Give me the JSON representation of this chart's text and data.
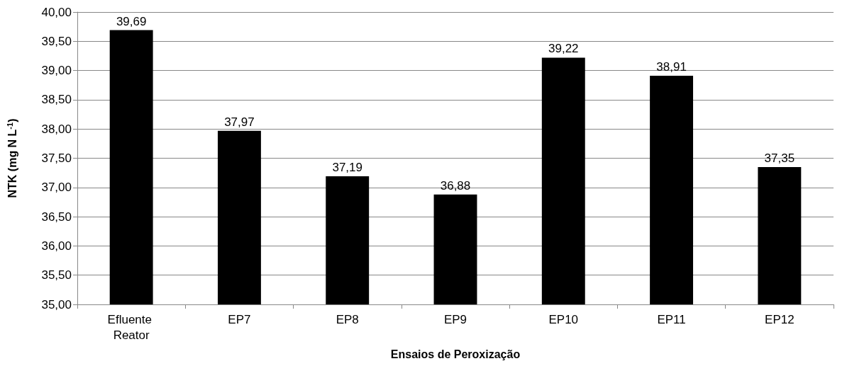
{
  "chart_data": {
    "type": "bar",
    "xlabel": "Ensaios de Peroxização",
    "ylabel": "NTK (mg N L$^{-1}$)",
    "categories": [
      "Efluente Reator",
      "EP7",
      "EP8",
      "EP9",
      "EP10",
      "EP11",
      "EP12"
    ],
    "values": [
      39.69,
      37.97,
      37.19,
      36.88,
      39.22,
      38.91,
      37.35
    ],
    "value_labels": [
      "39,69",
      "37,97",
      "37,19",
      "36,88",
      "39,22",
      "38,91",
      "37,35"
    ],
    "color": "#000000",
    "ylim": [
      35,
      40
    ],
    "yticks": [
      {
        "value": 35,
        "label": "35,00"
      },
      {
        "value": 35.5,
        "label": "35,50"
      },
      {
        "value": 36,
        "label": "36,00"
      },
      {
        "value": 36.5,
        "label": "36,50"
      },
      {
        "value": 37,
        "label": "37,00"
      },
      {
        "value": 37.5,
        "label": "37,50"
      },
      {
        "value": 38,
        "label": "38,00"
      },
      {
        "value": 38.5,
        "label": "38,50"
      },
      {
        "value": 39,
        "label": "39,00"
      },
      {
        "value": 39.5,
        "label": "39,50"
      },
      {
        "value": 40,
        "label": "40,00"
      }
    ],
    "grid": "y"
  }
}
